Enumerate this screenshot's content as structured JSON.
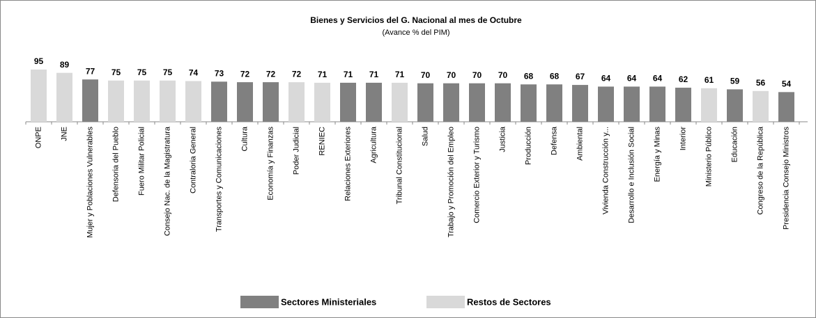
{
  "chart_data": {
    "type": "bar",
    "title": "Bienes y Servicios del G. Nacional  al mes de Octubre",
    "subtitle": "(Avance % del PIM)",
    "categories": [
      "ONPE",
      "JNE",
      "Mujer y Poblaciones Vulnerables",
      "Defensoria del Pueblo",
      "Fuero Militar Policial",
      "Consejo Nac. de la Magistratura",
      "Contraloria General",
      "Transportes y Comunicaciones",
      "Cultura",
      "Economía y Finanzas",
      "Poder Judicial",
      "RENIEC",
      "Relaciones Exteriores",
      "Agricultura",
      "Tribunal Constitucional",
      "Salud",
      "Trabajo y Promoción del Empleo",
      "Comercio Exterior y Turismo",
      "Justicia",
      "Producción",
      "Defensa",
      "Ambiental",
      "Vivienda Construcción y...",
      "Desarrollo e Inclusión Social",
      "Energía y Minas",
      "Interior",
      "Ministerio Público",
      "Educación",
      "Congreso de la República",
      "Presidencia Consejo Ministros"
    ],
    "values": [
      95,
      89,
      77,
      75,
      75,
      75,
      74,
      73,
      72,
      72,
      72,
      71,
      71,
      71,
      71,
      70,
      70,
      70,
      70,
      68,
      68,
      67,
      64,
      64,
      64,
      62,
      61,
      59,
      56,
      54
    ],
    "colors": [
      "#d9d9d9",
      "#d9d9d9",
      "#808080",
      "#d9d9d9",
      "#d9d9d9",
      "#d9d9d9",
      "#d9d9d9",
      "#808080",
      "#808080",
      "#808080",
      "#d9d9d9",
      "#d9d9d9",
      "#808080",
      "#808080",
      "#d9d9d9",
      "#808080",
      "#808080",
      "#808080",
      "#808080",
      "#808080",
      "#808080",
      "#808080",
      "#808080",
      "#808080",
      "#808080",
      "#808080",
      "#d9d9d9",
      "#808080",
      "#d9d9d9",
      "#808080"
    ],
    "legend": [
      {
        "name": "Sectores Ministeriales",
        "color": "#808080"
      },
      {
        "name": "Restos de Sectores",
        "color": "#d9d9d9"
      }
    ],
    "ylim": [
      0,
      100
    ]
  }
}
